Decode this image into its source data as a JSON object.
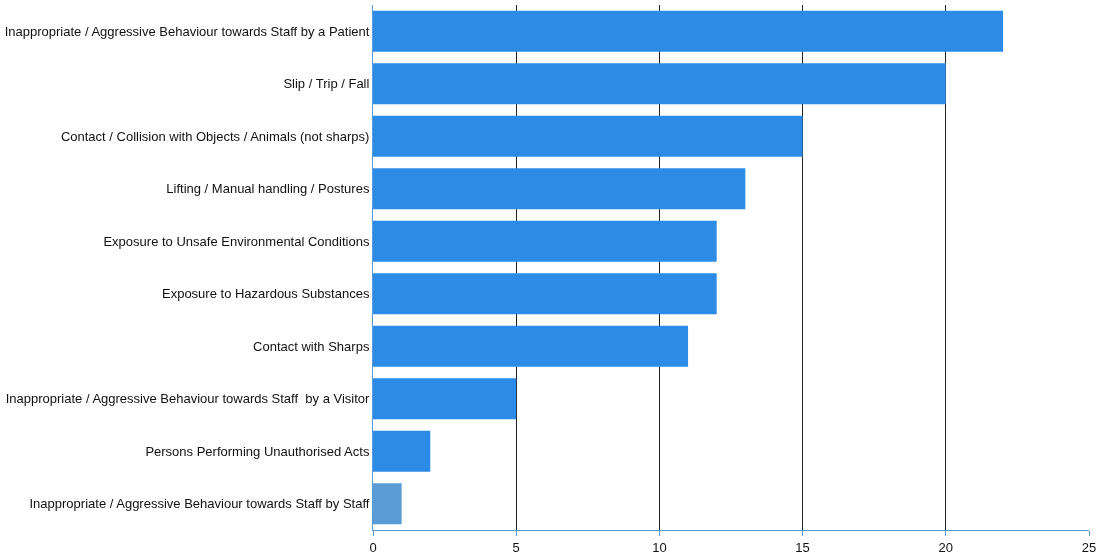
{
  "chart_data": {
    "type": "bar",
    "orientation": "horizontal",
    "categories": [
      "Inappropriate / Aggressive Behaviour towards Staff by a Patient",
      "Slip / Trip / Fall",
      "Contact / Collision with Objects / Animals (not sharps)",
      "Lifting / Manual handling / Postures",
      "Exposure to Unsafe Environmental Conditions",
      "Exposure to Hazardous Substances",
      "Contact with Sharps",
      "Inappropriate / Aggressive Behaviour towards Staff  by a Visitor",
      "Persons Performing Unauthorised Acts",
      "Inappropriate / Aggressive Behaviour towards Staff by Staff"
    ],
    "values": [
      22,
      20,
      15,
      13,
      12,
      12,
      11,
      5,
      2,
      1
    ],
    "colors": [
      "#2b8be6",
      "#2b8be6",
      "#2b8be6",
      "#2b8be6",
      "#2b8be6",
      "#2b8be6",
      "#2b8be6",
      "#2b8be6",
      "#2b8be6",
      "#5b9bd5"
    ],
    "xlim": [
      0,
      25
    ],
    "xticks": [
      0,
      5,
      10,
      15,
      20,
      25
    ],
    "grid": "x",
    "legend": false
  }
}
